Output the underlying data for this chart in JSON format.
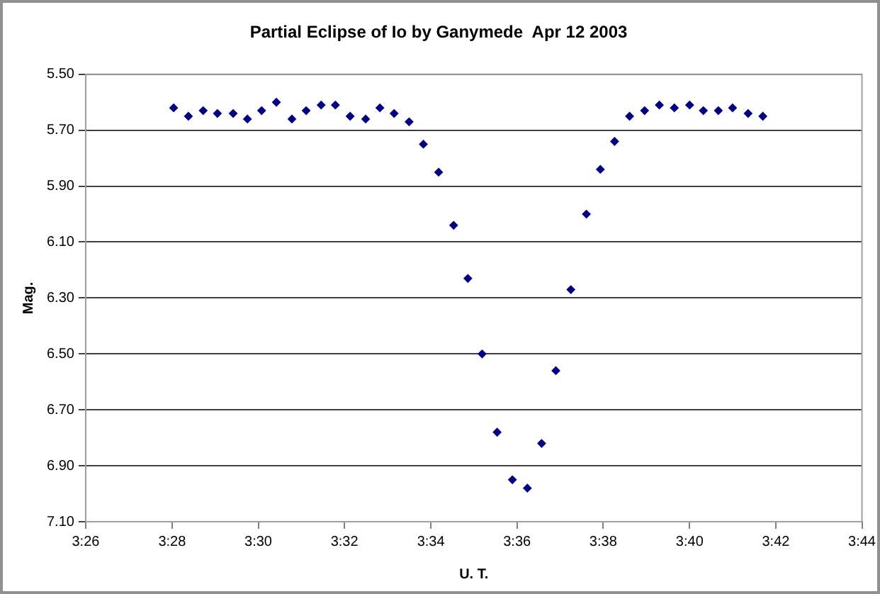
{
  "chart_data": {
    "type": "scatter",
    "title": "Partial Eclipse of Io by Ganymede  Apr 12 2003",
    "xlabel": "U. T.",
    "ylabel": "Mag.",
    "x": [
      3.4673,
      3.473,
      3.4787,
      3.4842,
      3.4903,
      3.4958,
      3.5013,
      3.507,
      3.513,
      3.5185,
      3.5243,
      3.5298,
      3.5355,
      3.5415,
      3.547,
      3.5525,
      3.5583,
      3.5638,
      3.5697,
      3.5755,
      3.581,
      3.5865,
      3.5923,
      3.5982,
      3.604,
      3.6095,
      3.615,
      3.6208,
      3.6268,
      3.6322,
      3.6377,
      3.6435,
      3.6493,
      3.655,
      3.6608,
      3.6667,
      3.672,
      3.6778,
      3.6833,
      3.6893,
      3.695
    ],
    "series": [
      {
        "color": "#000080",
        "values": [
          5.62,
          5.65,
          5.63,
          5.64,
          5.64,
          5.66,
          5.63,
          5.6,
          5.66,
          5.63,
          5.61,
          5.61,
          5.65,
          5.66,
          5.62,
          5.64,
          5.67,
          5.75,
          5.85,
          6.04,
          6.23,
          6.5,
          6.78,
          6.95,
          6.98,
          6.82,
          6.56,
          6.27,
          6.0,
          5.84,
          5.74,
          5.65,
          5.63,
          5.61,
          5.62,
          5.61,
          5.63,
          5.63,
          5.62,
          5.64,
          5.65
        ]
      }
    ],
    "xlim": [
      3.4333,
      3.7333
    ],
    "xticks": [
      {
        "value": 3.4333,
        "label": "3:26"
      },
      {
        "value": 3.4667,
        "label": "3:28"
      },
      {
        "value": 3.5,
        "label": "3:30"
      },
      {
        "value": 3.5333,
        "label": "3:32"
      },
      {
        "value": 3.5667,
        "label": "3:34"
      },
      {
        "value": 3.6,
        "label": "3:36"
      },
      {
        "value": 3.6333,
        "label": "3:38"
      },
      {
        "value": 3.6667,
        "label": "3:40"
      },
      {
        "value": 3.7,
        "label": "3:42"
      },
      {
        "value": 3.7333,
        "label": "3:44"
      }
    ],
    "ylim": [
      7.1,
      5.5
    ],
    "yticks": [
      {
        "value": 5.5,
        "label": "5.50"
      },
      {
        "value": 5.7,
        "label": "5.70"
      },
      {
        "value": 5.9,
        "label": "5.90"
      },
      {
        "value": 6.1,
        "label": "6.10"
      },
      {
        "value": 6.3,
        "label": "6.30"
      },
      {
        "value": 6.5,
        "label": "6.50"
      },
      {
        "value": 6.7,
        "label": "6.70"
      },
      {
        "value": 6.9,
        "label": "6.90"
      },
      {
        "value": 7.1,
        "label": "7.10"
      }
    ],
    "grid": "y",
    "legend": false,
    "marker": "diamond"
  }
}
